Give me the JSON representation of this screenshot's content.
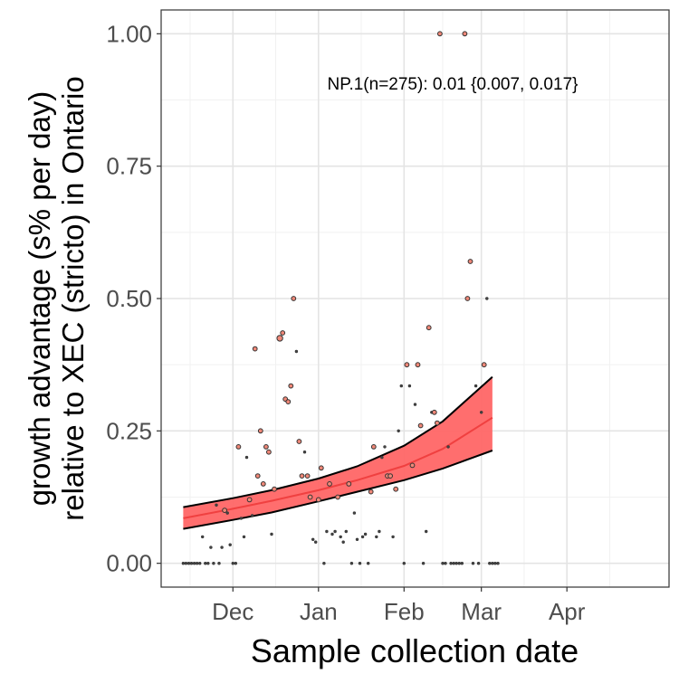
{
  "chart_data": {
    "type": "scatter",
    "title": "",
    "annotation": "NP.1(n=275): 0.01 {0.007, 0.017}",
    "xlabel": "Sample collection date",
    "ylabel_line1": "growth advantage (s% per day)",
    "ylabel_line2": "relative to XEC (stricto) in Ontario",
    "ylim": [
      -0.045,
      1.045
    ],
    "xlim": [
      "2024-11-05",
      "2025-05-08"
    ],
    "x_ticks": [
      {
        "date": "2024-12-01",
        "label": "Dec"
      },
      {
        "date": "2025-01-01",
        "label": "Jan"
      },
      {
        "date": "2025-02-01",
        "label": "Feb"
      },
      {
        "date": "2025-03-01",
        "label": "Mar"
      },
      {
        "date": "2025-04-01",
        "label": "Apr"
      }
    ],
    "y_ticks": [
      {
        "value": 0.0,
        "label": "0.00"
      },
      {
        "value": 0.25,
        "label": "0.25"
      },
      {
        "value": 0.5,
        "label": "0.50"
      },
      {
        "value": 0.75,
        "label": "0.75"
      },
      {
        "value": 1.0,
        "label": "1.00"
      }
    ],
    "grid": true,
    "colors": {
      "fit": "#f04040",
      "ribbon": "#ff6666",
      "point_fill": "#f08878",
      "band_edge": "#000000"
    },
    "fit": {
      "x": [
        "2024-11-13",
        "2024-12-01",
        "2024-12-15",
        "2025-01-01",
        "2025-01-15",
        "2025-02-01",
        "2025-02-15",
        "2025-03-05"
      ],
      "mid": [
        0.085,
        0.103,
        0.118,
        0.138,
        0.157,
        0.184,
        0.216,
        0.275
      ],
      "lower": [
        0.065,
        0.082,
        0.096,
        0.117,
        0.135,
        0.157,
        0.179,
        0.213
      ],
      "upper": [
        0.106,
        0.123,
        0.138,
        0.16,
        0.183,
        0.222,
        0.268,
        0.352
      ]
    },
    "points": [
      {
        "x": "2024-11-13",
        "y": 0.0,
        "s": 1
      },
      {
        "x": "2024-11-14",
        "y": 0.0,
        "s": 1
      },
      {
        "x": "2024-11-15",
        "y": 0.0,
        "s": 1
      },
      {
        "x": "2024-11-16",
        "y": 0.0,
        "s": 1
      },
      {
        "x": "2024-11-17",
        "y": 0.0,
        "s": 1
      },
      {
        "x": "2024-11-18",
        "y": 0.0,
        "s": 1
      },
      {
        "x": "2024-11-19",
        "y": 0.0,
        "s": 1
      },
      {
        "x": "2024-11-20",
        "y": 0.05,
        "s": 1
      },
      {
        "x": "2024-11-21",
        "y": 0.0,
        "s": 1
      },
      {
        "x": "2024-11-22",
        "y": 0.0,
        "s": 1
      },
      {
        "x": "2024-11-23",
        "y": 0.03,
        "s": 1
      },
      {
        "x": "2024-11-24",
        "y": 0.0,
        "s": 1
      },
      {
        "x": "2024-11-25",
        "y": 0.11,
        "s": 1
      },
      {
        "x": "2024-11-26",
        "y": 0.0,
        "s": 1
      },
      {
        "x": "2024-11-27",
        "y": 0.03,
        "s": 1
      },
      {
        "x": "2024-11-28",
        "y": 0.1,
        "s": 2
      },
      {
        "x": "2024-11-29",
        "y": 0.095,
        "s": 1
      },
      {
        "x": "2024-11-30",
        "y": 0.035,
        "s": 1
      },
      {
        "x": "2024-12-01",
        "y": 0.0,
        "s": 1
      },
      {
        "x": "2024-12-02",
        "y": 0.0,
        "s": 1
      },
      {
        "x": "2024-12-03",
        "y": 0.22,
        "s": 2
      },
      {
        "x": "2024-12-04",
        "y": 0.085,
        "s": 1
      },
      {
        "x": "2024-12-05",
        "y": 0.05,
        "s": 1
      },
      {
        "x": "2024-12-06",
        "y": 0.2,
        "s": 1
      },
      {
        "x": "2024-12-07",
        "y": 0.12,
        "s": 2
      },
      {
        "x": "2024-12-08",
        "y": 0.09,
        "s": 1
      },
      {
        "x": "2024-12-09",
        "y": 0.405,
        "s": 2
      },
      {
        "x": "2024-12-10",
        "y": 0.165,
        "s": 2
      },
      {
        "x": "2024-12-11",
        "y": 0.25,
        "s": 2
      },
      {
        "x": "2024-12-12",
        "y": 0.15,
        "s": 2
      },
      {
        "x": "2024-12-13",
        "y": 0.22,
        "s": 2
      },
      {
        "x": "2024-12-14",
        "y": 0.21,
        "s": 2
      },
      {
        "x": "2024-12-15",
        "y": 0.055,
        "s": 1
      },
      {
        "x": "2024-12-16",
        "y": 0.14,
        "s": 2
      },
      {
        "x": "2024-12-18",
        "y": 0.425,
        "s": 3
      },
      {
        "x": "2024-12-19",
        "y": 0.435,
        "s": 2
      },
      {
        "x": "2024-12-20",
        "y": 0.31,
        "s": 2
      },
      {
        "x": "2024-12-21",
        "y": 0.305,
        "s": 2
      },
      {
        "x": "2024-12-22",
        "y": 0.335,
        "s": 2
      },
      {
        "x": "2024-12-23",
        "y": 0.5,
        "s": 2
      },
      {
        "x": "2024-12-24",
        "y": 0.4,
        "s": 1
      },
      {
        "x": "2024-12-25",
        "y": 0.23,
        "s": 2
      },
      {
        "x": "2024-12-26",
        "y": 0.165,
        "s": 2
      },
      {
        "x": "2024-12-27",
        "y": 0.21,
        "s": 1
      },
      {
        "x": "2024-12-28",
        "y": 0.165,
        "s": 2
      },
      {
        "x": "2024-12-29",
        "y": 0.125,
        "s": 2
      },
      {
        "x": "2024-12-30",
        "y": 0.045,
        "s": 1
      },
      {
        "x": "2024-12-31",
        "y": 0.04,
        "s": 1
      },
      {
        "x": "2025-01-01",
        "y": 0.12,
        "s": 2
      },
      {
        "x": "2025-01-02",
        "y": 0.18,
        "s": 2
      },
      {
        "x": "2025-01-03",
        "y": 0.0,
        "s": 1
      },
      {
        "x": "2025-01-04",
        "y": 0.06,
        "s": 1
      },
      {
        "x": "2025-01-05",
        "y": 0.15,
        "s": 2
      },
      {
        "x": "2025-01-06",
        "y": 0.055,
        "s": 1
      },
      {
        "x": "2025-01-07",
        "y": 0.06,
        "s": 1
      },
      {
        "x": "2025-01-08",
        "y": 0.125,
        "s": 2
      },
      {
        "x": "2025-01-09",
        "y": 0.05,
        "s": 1
      },
      {
        "x": "2025-01-10",
        "y": 0.04,
        "s": 1
      },
      {
        "x": "2025-01-11",
        "y": 0.06,
        "s": 1
      },
      {
        "x": "2025-01-12",
        "y": 0.15,
        "s": 2
      },
      {
        "x": "2025-01-13",
        "y": 0.0,
        "s": 1
      },
      {
        "x": "2025-01-14",
        "y": 0.095,
        "s": 1
      },
      {
        "x": "2025-01-15",
        "y": 0.045,
        "s": 1
      },
      {
        "x": "2025-01-16",
        "y": 0.0,
        "s": 1
      },
      {
        "x": "2025-01-17",
        "y": 0.05,
        "s": 1
      },
      {
        "x": "2025-01-18",
        "y": 0.055,
        "s": 1
      },
      {
        "x": "2025-01-19",
        "y": 0.0,
        "s": 1
      },
      {
        "x": "2025-01-20",
        "y": 0.135,
        "s": 2
      },
      {
        "x": "2025-01-21",
        "y": 0.22,
        "s": 2
      },
      {
        "x": "2025-01-22",
        "y": 0.05,
        "s": 1
      },
      {
        "x": "2025-01-23",
        "y": 0.06,
        "s": 1
      },
      {
        "x": "2025-01-24",
        "y": 0.2,
        "s": 1
      },
      {
        "x": "2025-01-25",
        "y": 0.22,
        "s": 1
      },
      {
        "x": "2025-01-26",
        "y": 0.165,
        "s": 2
      },
      {
        "x": "2025-01-27",
        "y": 0.165,
        "s": 2
      },
      {
        "x": "2025-01-28",
        "y": 0.05,
        "s": 1
      },
      {
        "x": "2025-01-29",
        "y": 0.14,
        "s": 2
      },
      {
        "x": "2025-01-30",
        "y": 0.25,
        "s": 1
      },
      {
        "x": "2025-01-31",
        "y": 0.335,
        "s": 1
      },
      {
        "x": "2025-02-01",
        "y": 0.0,
        "s": 1
      },
      {
        "x": "2025-02-02",
        "y": 0.375,
        "s": 2
      },
      {
        "x": "2025-02-03",
        "y": 0.335,
        "s": 1
      },
      {
        "x": "2025-02-04",
        "y": 0.185,
        "s": 2
      },
      {
        "x": "2025-02-05",
        "y": 0.3,
        "s": 1
      },
      {
        "x": "2025-02-06",
        "y": 0.375,
        "s": 2
      },
      {
        "x": "2025-02-07",
        "y": 0.26,
        "s": 2
      },
      {
        "x": "2025-02-08",
        "y": 0.0,
        "s": 1
      },
      {
        "x": "2025-02-09",
        "y": 0.06,
        "s": 1
      },
      {
        "x": "2025-02-10",
        "y": 0.445,
        "s": 2
      },
      {
        "x": "2025-02-11",
        "y": 0.285,
        "s": 1
      },
      {
        "x": "2025-02-12",
        "y": 0.285,
        "s": 2
      },
      {
        "x": "2025-02-13",
        "y": 0.265,
        "s": 2
      },
      {
        "x": "2025-02-14",
        "y": 1.0,
        "s": 2
      },
      {
        "x": "2025-02-15",
        "y": 0.0,
        "s": 1
      },
      {
        "x": "2025-02-16",
        "y": 0.0,
        "s": 1
      },
      {
        "x": "2025-02-17",
        "y": 0.22,
        "s": 1
      },
      {
        "x": "2025-02-18",
        "y": 0.0,
        "s": 1
      },
      {
        "x": "2025-02-19",
        "y": 0.0,
        "s": 1
      },
      {
        "x": "2025-02-20",
        "y": 0.0,
        "s": 1
      },
      {
        "x": "2025-02-21",
        "y": 0.0,
        "s": 1
      },
      {
        "x": "2025-02-22",
        "y": 0.0,
        "s": 1
      },
      {
        "x": "2025-02-23",
        "y": 1.0,
        "s": 2
      },
      {
        "x": "2025-02-24",
        "y": 0.5,
        "s": 2
      },
      {
        "x": "2025-02-25",
        "y": 0.57,
        "s": 2
      },
      {
        "x": "2025-02-26",
        "y": 0.0,
        "s": 1
      },
      {
        "x": "2025-02-27",
        "y": 0.335,
        "s": 1
      },
      {
        "x": "2025-02-28",
        "y": 0.0,
        "s": 1
      },
      {
        "x": "2025-03-01",
        "y": 0.285,
        "s": 1
      },
      {
        "x": "2025-03-02",
        "y": 0.375,
        "s": 2
      },
      {
        "x": "2025-03-03",
        "y": 0.5,
        "s": 1
      },
      {
        "x": "2025-03-04",
        "y": 0.0,
        "s": 1
      },
      {
        "x": "2025-03-05",
        "y": 0.0,
        "s": 1
      },
      {
        "x": "2025-03-06",
        "y": 0.0,
        "s": 1
      },
      {
        "x": "2025-03-07",
        "y": 0.0,
        "s": 1
      }
    ]
  }
}
